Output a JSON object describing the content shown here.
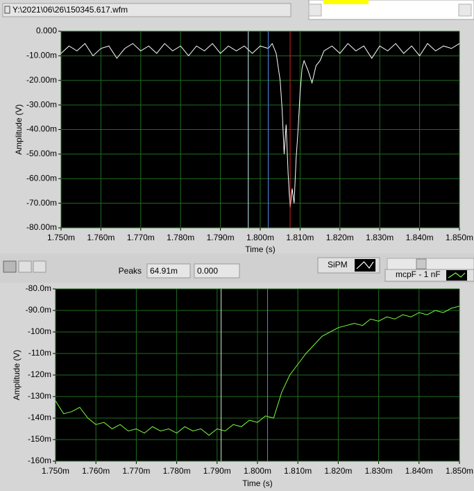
{
  "file_path": "Y:\\2021\\06\\26\\150345.617.wfm",
  "peaks": {
    "label": "Peaks",
    "value_1": "64.91m",
    "value_2": "0.000"
  },
  "chart_data": [
    {
      "type": "line",
      "xlabel": "Time (s)",
      "ylabel": "Amplitude (V)",
      "xlim": [
        0.00175,
        0.00185
      ],
      "ylim": [
        -0.08,
        0
      ],
      "xticks": [
        {
          "value": 0.00175,
          "label": "1.750m"
        },
        {
          "value": 0.00176,
          "label": "1.760m"
        },
        {
          "value": 0.00177,
          "label": "1.770m"
        },
        {
          "value": 0.00178,
          "label": "1.780m"
        },
        {
          "value": 0.00179,
          "label": "1.790m"
        },
        {
          "value": 0.0018,
          "label": "1.800m"
        },
        {
          "value": 0.00181,
          "label": "1.810m"
        },
        {
          "value": 0.00182,
          "label": "1.820m"
        },
        {
          "value": 0.00183,
          "label": "1.830m"
        },
        {
          "value": 0.00184,
          "label": "1.840m"
        },
        {
          "value": 0.00185,
          "label": "1.850m"
        }
      ],
      "yticks": [
        {
          "value": 0,
          "label": "0.000"
        },
        {
          "value": -0.01,
          "label": "-10.00m"
        },
        {
          "value": -0.02,
          "label": "-20.00m"
        },
        {
          "value": -0.03,
          "label": "-30.00m"
        },
        {
          "value": -0.04,
          "label": "-40.00m"
        },
        {
          "value": -0.05,
          "label": "-50.00m"
        },
        {
          "value": -0.06,
          "label": "-60.00m"
        },
        {
          "value": -0.07,
          "label": "-70.00m"
        },
        {
          "value": -0.08,
          "label": "-80.00m"
        }
      ],
      "grid": true,
      "cursors": [
        {
          "x": 0.001797,
          "color": "#c8f4f4"
        },
        {
          "x": 0.001802,
          "color": "#4a90e2"
        },
        {
          "x": 0.0018075,
          "color": "#e02020"
        }
      ],
      "x": [
        0.00175,
        0.001752,
        0.001754,
        0.001756,
        0.001758,
        0.00176,
        0.001762,
        0.001764,
        0.001766,
        0.001768,
        0.00177,
        0.001772,
        0.001774,
        0.001776,
        0.001778,
        0.00178,
        0.001782,
        0.001784,
        0.001786,
        0.001788,
        0.00179,
        0.001792,
        0.001794,
        0.001796,
        0.001798,
        0.0018,
        0.001802,
        0.001803,
        0.001804,
        0.001805,
        0.0018055,
        0.001806,
        0.0018065,
        0.001807,
        0.0018075,
        0.001808,
        0.0018085,
        0.001809,
        0.0018095,
        0.00181,
        0.0018105,
        0.001811,
        0.001812,
        0.001813,
        0.001814,
        0.001815,
        0.001816,
        0.001818,
        0.00182,
        0.001822,
        0.001824,
        0.001826,
        0.001828,
        0.00183,
        0.001832,
        0.001834,
        0.001836,
        0.001838,
        0.00184,
        0.001842,
        0.001844,
        0.001846,
        0.001848,
        0.00185
      ],
      "series": [
        {
          "name": "SiPM",
          "color": "#ffffff",
          "values": [
            -0.009,
            -0.006,
            -0.008,
            -0.005,
            -0.01,
            -0.007,
            -0.006,
            -0.011,
            -0.007,
            -0.005,
            -0.008,
            -0.006,
            -0.009,
            -0.005,
            -0.008,
            -0.006,
            -0.01,
            -0.006,
            -0.008,
            -0.005,
            -0.009,
            -0.006,
            -0.008,
            -0.006,
            -0.009,
            -0.006,
            -0.007,
            -0.005,
            -0.009,
            -0.02,
            -0.032,
            -0.05,
            -0.038,
            -0.058,
            -0.072,
            -0.064,
            -0.07,
            -0.052,
            -0.04,
            -0.025,
            -0.015,
            -0.012,
            -0.016,
            -0.021,
            -0.014,
            -0.012,
            -0.008,
            -0.006,
            -0.009,
            -0.005,
            -0.008,
            -0.006,
            -0.011,
            -0.006,
            -0.008,
            -0.005,
            -0.009,
            -0.006,
            -0.01,
            -0.005,
            -0.008,
            -0.006,
            -0.007,
            -0.005
          ]
        }
      ]
    },
    {
      "type": "line",
      "xlabel": "Time (s)",
      "ylabel": "Amplitude (V)",
      "xlim": [
        0.00175,
        0.00185
      ],
      "ylim": [
        -0.16,
        -0.08
      ],
      "xticks": [
        {
          "value": 0.00175,
          "label": "1.750m"
        },
        {
          "value": 0.00176,
          "label": "1.760m"
        },
        {
          "value": 0.00177,
          "label": "1.770m"
        },
        {
          "value": 0.00178,
          "label": "1.780m"
        },
        {
          "value": 0.00179,
          "label": "1.790m"
        },
        {
          "value": 0.0018,
          "label": "1.800m"
        },
        {
          "value": 0.00181,
          "label": "1.810m"
        },
        {
          "value": 0.00182,
          "label": "1.820m"
        },
        {
          "value": 0.00183,
          "label": "1.830m"
        },
        {
          "value": 0.00184,
          "label": "1.840m"
        },
        {
          "value": 0.00185,
          "label": "1.850m"
        }
      ],
      "yticks": [
        {
          "value": -0.08,
          "label": "-80.0m"
        },
        {
          "value": -0.09,
          "label": "-90.0m"
        },
        {
          "value": -0.1,
          "label": "-100m"
        },
        {
          "value": -0.11,
          "label": "-110m"
        },
        {
          "value": -0.12,
          "label": "-120m"
        },
        {
          "value": -0.13,
          "label": "-130m"
        },
        {
          "value": -0.14,
          "label": "-140m"
        },
        {
          "value": -0.15,
          "label": "-150m"
        },
        {
          "value": -0.16,
          "label": "-160m"
        }
      ],
      "grid": true,
      "cursors": [
        {
          "x": 0.001791,
          "color": "#c8f4c8"
        },
        {
          "x": 0.0018025,
          "color": "#4a90e2"
        }
      ],
      "x": [
        0.00175,
        0.001752,
        0.001754,
        0.001756,
        0.001758,
        0.00176,
        0.001762,
        0.001764,
        0.001766,
        0.001768,
        0.00177,
        0.001772,
        0.001774,
        0.001776,
        0.001778,
        0.00178,
        0.001782,
        0.001784,
        0.001786,
        0.001788,
        0.00179,
        0.001792,
        0.001794,
        0.001796,
        0.001798,
        0.0018,
        0.001802,
        0.001804,
        0.001806,
        0.001808,
        0.00181,
        0.001812,
        0.001814,
        0.001816,
        0.001818,
        0.00182,
        0.001822,
        0.001824,
        0.001826,
        0.001828,
        0.00183,
        0.001832,
        0.001834,
        0.001836,
        0.001838,
        0.00184,
        0.001842,
        0.001844,
        0.001846,
        0.001848,
        0.00185
      ],
      "series": [
        {
          "name": "mcpF - 1 nF",
          "color": "#7cfc3c",
          "values": [
            -0.132,
            -0.138,
            -0.137,
            -0.135,
            -0.14,
            -0.143,
            -0.142,
            -0.145,
            -0.143,
            -0.146,
            -0.145,
            -0.147,
            -0.144,
            -0.146,
            -0.145,
            -0.147,
            -0.144,
            -0.146,
            -0.145,
            -0.148,
            -0.145,
            -0.146,
            -0.143,
            -0.144,
            -0.141,
            -0.142,
            -0.139,
            -0.14,
            -0.128,
            -0.12,
            -0.115,
            -0.11,
            -0.106,
            -0.102,
            -0.1,
            -0.098,
            -0.097,
            -0.096,
            -0.097,
            -0.094,
            -0.095,
            -0.093,
            -0.094,
            -0.092,
            -0.093,
            -0.091,
            -0.092,
            -0.09,
            -0.091,
            -0.089,
            -0.088
          ]
        }
      ]
    }
  ]
}
